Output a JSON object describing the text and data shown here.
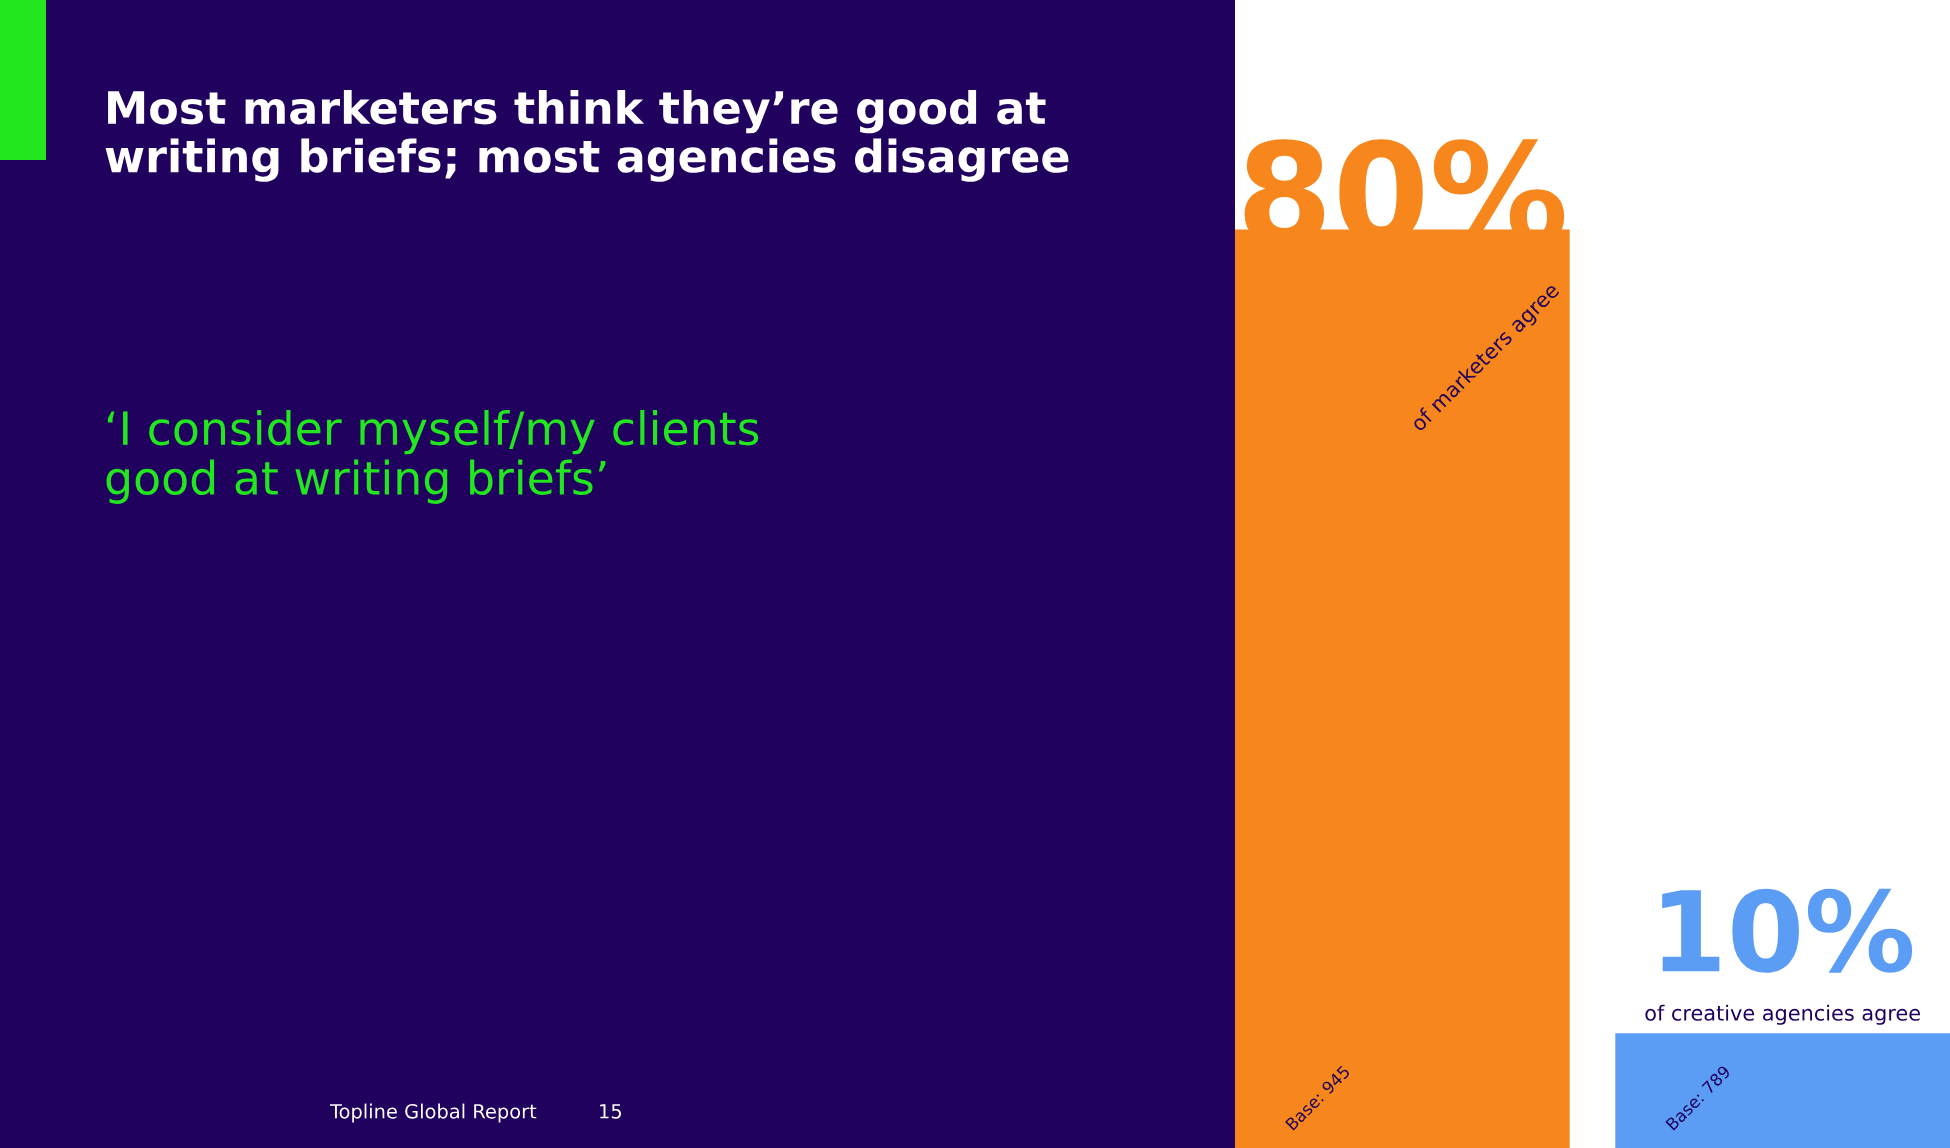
{
  "chart_data": {
    "type": "bar",
    "title": "Most marketers think they’re good at\nwriting briefs; most agencies disagree",
    "subtitle": "‘I consider myself/my clients\ngood at writing briefs’",
    "categories": [
      "of marketers agree",
      "of creative agencies agree"
    ],
    "values": [
      80,
      10
    ],
    "colors": [
      "#f7861c",
      "#5b9cf5"
    ],
    "value_labels": [
      "80%",
      "10%"
    ],
    "ylim": [
      0,
      100
    ],
    "tick_labels": false,
    "annotations": [
      "Base: 945",
      "Base: 789",
      "Topline Global Report",
      "15"
    ]
  }
}
